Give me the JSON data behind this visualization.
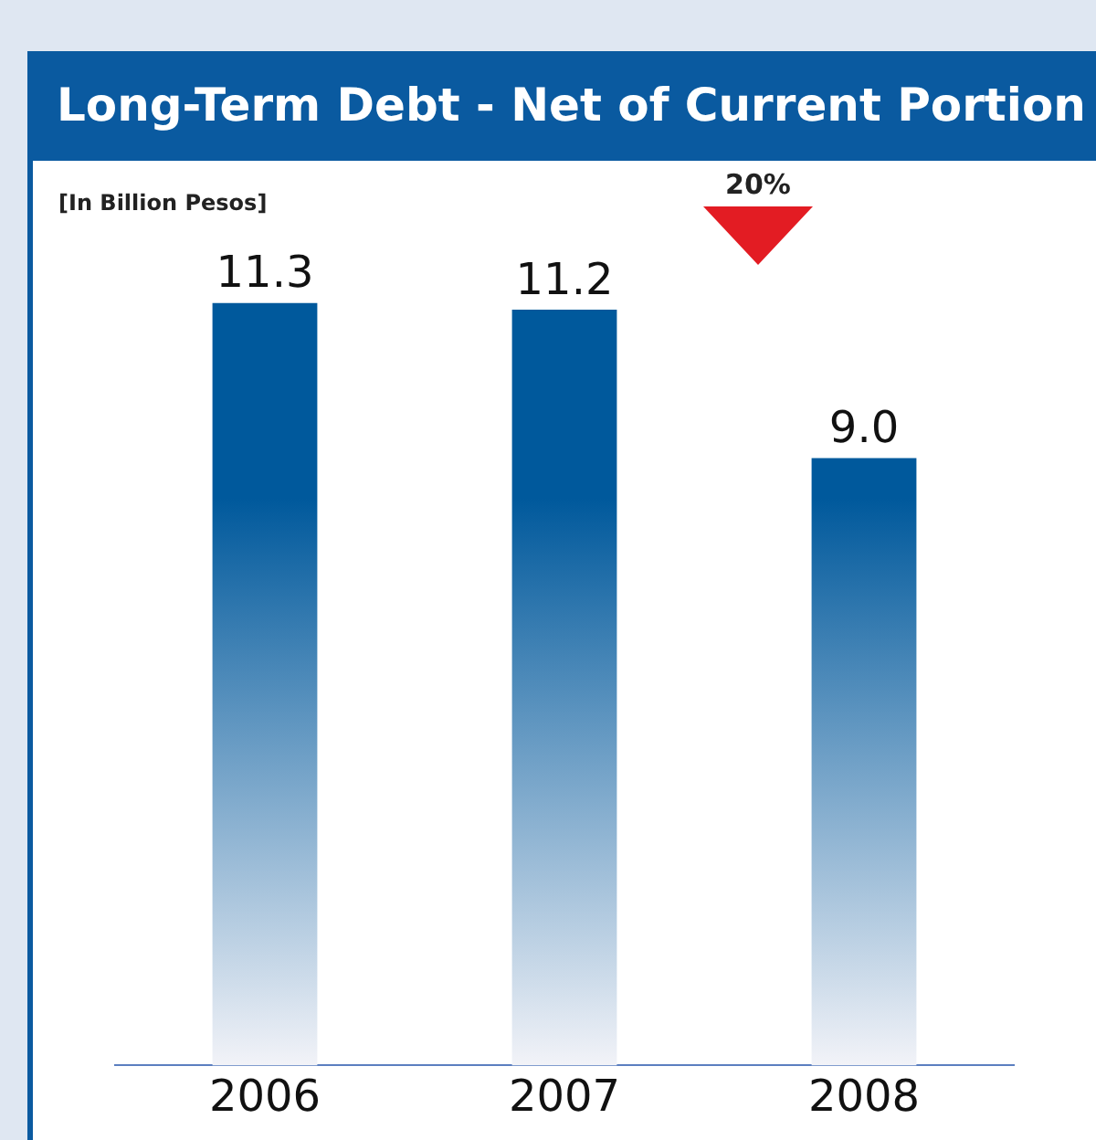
{
  "chart_data": {
    "type": "bar",
    "title": "Long-Term Debt - Net of Current Portion",
    "ylabel": "[In Billion Pesos]",
    "categories": [
      "2006",
      "2007",
      "2008"
    ],
    "values": [
      11.3,
      11.2,
      9.0
    ],
    "value_labels": [
      "11.3",
      "11.2",
      "9.0"
    ],
    "color": "#00599c",
    "data_labels": true,
    "grid": false,
    "legend": false,
    "annotations": [
      "20%"
    ]
  }
}
